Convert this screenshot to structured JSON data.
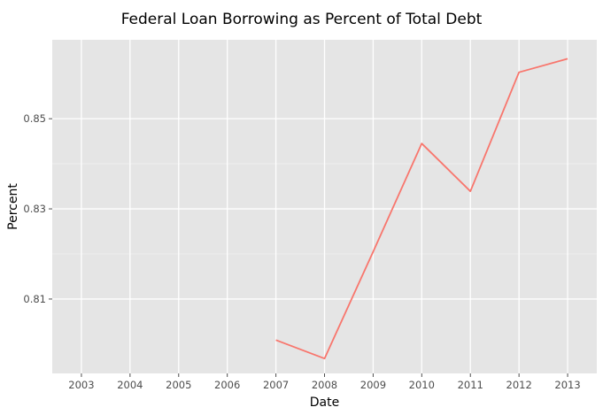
{
  "chart_data": {
    "type": "line",
    "title": "Federal Loan Borrowing as Percent of Total Debt",
    "xlabel": "Date",
    "ylabel": "Percent",
    "xlim": [
      2002.4,
      2013.6
    ],
    "ylim": [
      0.7935,
      0.8675
    ],
    "x_ticks": [
      2003,
      2004,
      2005,
      2006,
      2007,
      2008,
      2009,
      2010,
      2011,
      2012,
      2013
    ],
    "x_tick_labels": [
      "2003",
      "2004",
      "2005",
      "2006",
      "2007",
      "2008",
      "2009",
      "2010",
      "2011",
      "2012",
      "2013"
    ],
    "y_ticks": [
      0.81,
      0.83,
      0.85
    ],
    "y_tick_labels": [
      "0.81",
      "0.83",
      "0.85"
    ],
    "grid": true,
    "background_color": "#e5e5e5",
    "grid_color": "#ffffff",
    "series": [
      {
        "color": "#f8766d",
        "x": [
          2007,
          2008,
          2009,
          2010,
          2011,
          2012,
          2013
        ],
        "y": [
          0.8009,
          0.7968,
          0.8205,
          0.8445,
          0.8339,
          0.8603,
          0.8633
        ]
      }
    ]
  }
}
